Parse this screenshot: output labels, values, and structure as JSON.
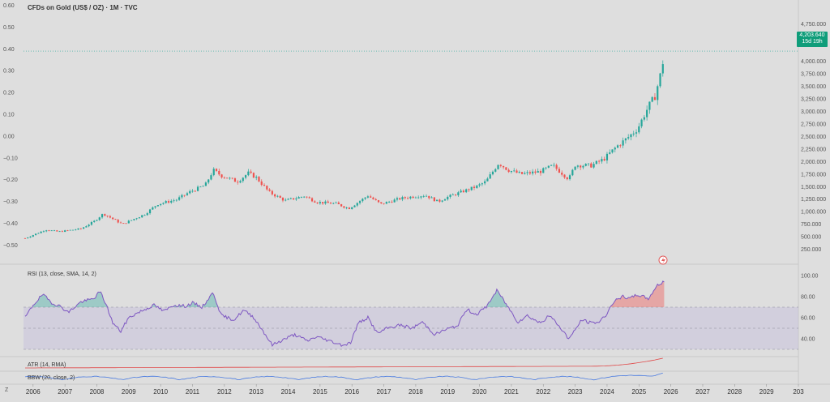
{
  "header": {
    "title": "CFDs on Gold (US$ / OZ) · 1M · TVC",
    "price": "4,203.640",
    "countdown": "15d 19h"
  },
  "left_axis": [
    "0.60",
    "0.50",
    "0.40",
    "0.30",
    "0.20",
    "0.10",
    "0.00",
    "−0.10",
    "−0.20",
    "−0.30",
    "−0.40",
    "−0.50"
  ],
  "right_axis": [
    "4,750.000",
    "4,500.000",
    "4,250.000",
    "4,000.000",
    "3,750.000",
    "3,500.000",
    "3,250.000",
    "3,000.000",
    "2,750.000",
    "2,500.000",
    "2,250.000",
    "2,000.000",
    "1,750.000",
    "1,500.000",
    "1,250.000",
    "1,000.000",
    "750.000",
    "500.000",
    "250.000"
  ],
  "rsi_axis": [
    "100.00",
    "80.00",
    "60.00",
    "40.00"
  ],
  "x_axis": [
    "2006",
    "2007",
    "2008",
    "2009",
    "2010",
    "2011",
    "2012",
    "2013",
    "2014",
    "2015",
    "2016",
    "2017",
    "2018",
    "2019",
    "2020",
    "2021",
    "2022",
    "2023",
    "2024",
    "2025",
    "2026",
    "2027",
    "2028",
    "2029",
    "203"
  ],
  "bottom_left": "Z",
  "indicators": {
    "rsi": "RSI (13, close, SMA, 14, 2)",
    "atr": "ATR (14, RMA)",
    "bbw": "BBW (20, close, 2)"
  },
  "colors": {
    "up": "#26a69a",
    "down": "#ef5350",
    "rsi_line": "#7e57c2",
    "rsi_band": "#c9c3dc",
    "atr_line": "#e04848",
    "bbw_line": "#4a7be0",
    "price_tag": "#0f9d7a"
  },
  "chart_data": [
    {
      "type": "candlestick",
      "series_name": "CFDs on Gold (US$ / OZ)",
      "interval": "1M",
      "x_range": [
        2005.7,
        2030
      ],
      "y_range": [
        130,
        4900
      ],
      "last_price": 4203.64,
      "anchors": [
        [
          2005.75,
          470
        ],
        [
          2006.4,
          640
        ],
        [
          2006.8,
          600
        ],
        [
          2007.5,
          660
        ],
        [
          2007.9,
          800
        ],
        [
          2008.2,
          960
        ],
        [
          2008.8,
          750
        ],
        [
          2009.5,
          950
        ],
        [
          2009.9,
          1150
        ],
        [
          2010.5,
          1240
        ],
        [
          2010.9,
          1390
        ],
        [
          2011.4,
          1530
        ],
        [
          2011.65,
          1830
        ],
        [
          2011.9,
          1720
        ],
        [
          2012.4,
          1600
        ],
        [
          2012.75,
          1770
        ],
        [
          2013.0,
          1680
        ],
        [
          2013.4,
          1390
        ],
        [
          2013.9,
          1220
        ],
        [
          2014.5,
          1310
        ],
        [
          2014.9,
          1190
        ],
        [
          2015.5,
          1160
        ],
        [
          2015.9,
          1065
        ],
        [
          2016.5,
          1320
        ],
        [
          2016.9,
          1150
        ],
        [
          2017.5,
          1260
        ],
        [
          2017.9,
          1300
        ],
        [
          2018.3,
          1330
        ],
        [
          2018.7,
          1200
        ],
        [
          2018.95,
          1280
        ],
        [
          2019.5,
          1410
        ],
        [
          2019.9,
          1500
        ],
        [
          2020.2,
          1600
        ],
        [
          2020.6,
          1970
        ],
        [
          2020.9,
          1830
        ],
        [
          2021.3,
          1750
        ],
        [
          2021.9,
          1800
        ],
        [
          2022.3,
          1920
        ],
        [
          2022.8,
          1650
        ],
        [
          2023.0,
          1930
        ],
        [
          2023.5,
          1920
        ],
        [
          2023.9,
          2050
        ],
        [
          2024.3,
          2300
        ],
        [
          2024.6,
          2450
        ],
        [
          2024.95,
          2650
        ],
        [
          2025.3,
          3100
        ],
        [
          2025.5,
          3300
        ],
        [
          2025.72,
          3850
        ],
        [
          2025.8,
          4203.64
        ]
      ],
      "peak_high": 4380
    },
    {
      "type": "line",
      "name": "RSI (13, close, SMA, 14, 2)",
      "y_range": [
        30,
        100
      ],
      "bands": [
        30,
        70
      ],
      "midline": 50,
      "anchors": [
        [
          2005.75,
          60
        ],
        [
          2006.0,
          72
        ],
        [
          2006.3,
          82
        ],
        [
          2006.6,
          74
        ],
        [
          2006.9,
          70
        ],
        [
          2007.1,
          65
        ],
        [
          2007.5,
          75
        ],
        [
          2007.9,
          78
        ],
        [
          2008.1,
          85
        ],
        [
          2008.3,
          72
        ],
        [
          2008.5,
          55
        ],
        [
          2008.75,
          47
        ],
        [
          2009.0,
          60
        ],
        [
          2009.3,
          65
        ],
        [
          2009.8,
          72
        ],
        [
          2010.1,
          66
        ],
        [
          2010.4,
          72
        ],
        [
          2010.8,
          71
        ],
        [
          2011.0,
          74
        ],
        [
          2011.3,
          70
        ],
        [
          2011.65,
          84
        ],
        [
          2011.9,
          62
        ],
        [
          2012.3,
          58
        ],
        [
          2012.6,
          67
        ],
        [
          2012.9,
          61
        ],
        [
          2013.2,
          48
        ],
        [
          2013.5,
          34
        ],
        [
          2013.9,
          40
        ],
        [
          2014.2,
          44
        ],
        [
          2014.6,
          38
        ],
        [
          2014.9,
          42
        ],
        [
          2015.3,
          38
        ],
        [
          2015.7,
          34
        ],
        [
          2015.95,
          36
        ],
        [
          2016.2,
          55
        ],
        [
          2016.5,
          60
        ],
        [
          2016.8,
          45
        ],
        [
          2017.1,
          50
        ],
        [
          2017.5,
          53
        ],
        [
          2017.9,
          50
        ],
        [
          2018.2,
          56
        ],
        [
          2018.6,
          44
        ],
        [
          2018.95,
          49
        ],
        [
          2019.3,
          52
        ],
        [
          2019.6,
          68
        ],
        [
          2019.9,
          63
        ],
        [
          2020.2,
          70
        ],
        [
          2020.55,
          86
        ],
        [
          2020.9,
          70
        ],
        [
          2021.2,
          56
        ],
        [
          2021.5,
          62
        ],
        [
          2021.9,
          55
        ],
        [
          2022.2,
          62
        ],
        [
          2022.5,
          52
        ],
        [
          2022.8,
          40
        ],
        [
          2022.95,
          46
        ],
        [
          2023.2,
          58
        ],
        [
          2023.5,
          55
        ],
        [
          2023.75,
          56
        ],
        [
          2023.95,
          62
        ],
        [
          2024.2,
          75
        ],
        [
          2024.5,
          80
        ],
        [
          2024.7,
          78
        ],
        [
          2024.95,
          82
        ],
        [
          2025.3,
          78
        ],
        [
          2025.55,
          90
        ],
        [
          2025.8,
          95
        ]
      ]
    },
    {
      "type": "line",
      "name": "ATR (14, RMA)",
      "x_range": [
        2005.7,
        2025.8
      ],
      "trend": "nearly flat rising from ~0 to a small uptick at the end"
    },
    {
      "type": "line",
      "name": "BBW (20, close, 2)",
      "x_range": [
        2005.7,
        2025.8
      ],
      "trend": "wavy low values with a rise at the end"
    }
  ]
}
